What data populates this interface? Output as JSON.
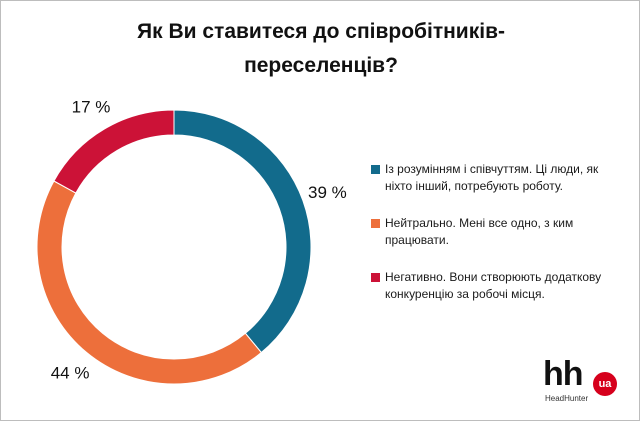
{
  "title": "Як Ви ставитеся до співробітників-переселенців?",
  "chart_data": {
    "type": "pie",
    "donut": true,
    "categories": [
      "Із розумінням і співчуттям. Ці люди, як ніхто інший, потребують роботу.",
      "Нейтрально. Мені все одно, з ким працювати.",
      "Негативно. Вони створюють додаткову конкуренцію за робочі місця."
    ],
    "values": [
      39,
      44,
      17
    ],
    "value_labels": [
      "39 %",
      "44 %",
      "17 %"
    ],
    "colors": [
      "#126b8c",
      "#ed6f3b",
      "#cc1237"
    ],
    "legend_position": "right"
  },
  "logo": {
    "brand": "hh",
    "badge": "ua",
    "subtitle": "HeadHunter"
  }
}
